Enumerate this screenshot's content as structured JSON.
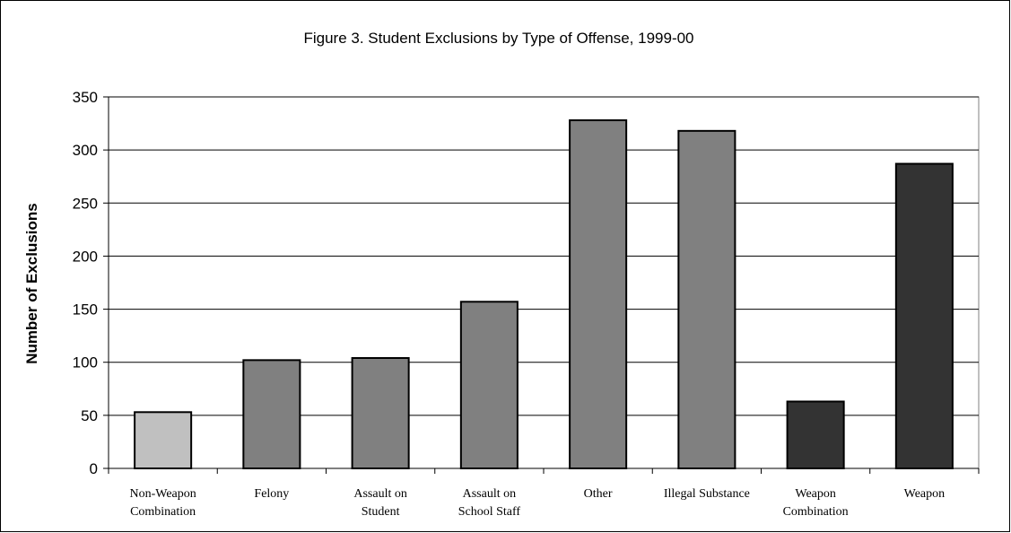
{
  "chart_data": {
    "type": "bar",
    "title": "Figure 3. Student Exclusions by Type of Offense, 1999-00",
    "xlabel": "",
    "ylabel": "Number of Exclusions",
    "ylim": [
      0,
      350
    ],
    "yticks": [
      0,
      50,
      100,
      150,
      200,
      250,
      300,
      350
    ],
    "grid": true,
    "categories": [
      [
        "Non-Weapon",
        "Combination"
      ],
      [
        "Felony"
      ],
      [
        "Assault on",
        "Student"
      ],
      [
        "Assault on",
        "School Staff"
      ],
      [
        "Other"
      ],
      [
        "Illegal Substance"
      ],
      [
        "Weapon",
        "Combination"
      ],
      [
        "Weapon"
      ]
    ],
    "values": [
      53,
      102,
      104,
      157,
      328,
      318,
      63,
      287
    ],
    "bar_colors": [
      "#c0c0c0",
      "#808080",
      "#808080",
      "#808080",
      "#808080",
      "#808080",
      "#333333",
      "#333333"
    ]
  }
}
